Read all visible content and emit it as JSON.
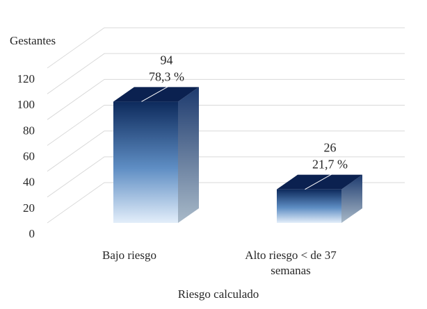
{
  "chart_data": {
    "type": "bar",
    "style": "3d-column",
    "categories": [
      "Bajo riesgo",
      "Alto riesgo < de 37 semanas"
    ],
    "category_lines": [
      [
        "Bajo riesgo"
      ],
      [
        "Alto riesgo < de 37",
        "semanas"
      ]
    ],
    "values": [
      94,
      26
    ],
    "percent_labels": [
      "78,3 %",
      "21,7 %"
    ],
    "ylabel": "Gestantes",
    "xlabel": "Riesgo calculado",
    "ylim": [
      0,
      120
    ],
    "yticks": [
      "0",
      "20",
      "40",
      "60",
      "80",
      "100",
      "120"
    ],
    "grid": true,
    "legend": "none",
    "colors": {
      "front_top": "#0d2a5c",
      "front_bottom": "#e3eefa",
      "top_face": "#0b2150",
      "side_top": "#1d3a6e",
      "side_bottom": "#a9bac9"
    }
  }
}
